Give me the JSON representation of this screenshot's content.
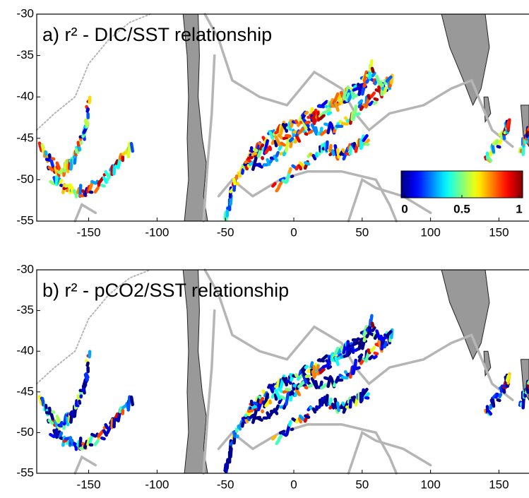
{
  "panels": [
    {
      "title": "a) r² - DIC/SST relationship",
      "xlim": [
        -188,
        172
      ],
      "ylim": [
        -55,
        -30
      ],
      "xticks": [
        -150,
        -100,
        -50,
        0,
        50,
        100,
        150
      ],
      "yticks": [
        -30,
        -35,
        -40,
        -45,
        -50,
        -55
      ]
    },
    {
      "title": "b) r² - pCO2/SST relationship",
      "xlim": [
        -188,
        172
      ],
      "ylim": [
        -55,
        -30
      ],
      "xticks": [
        -150,
        -100,
        -50,
        0,
        50,
        100,
        150
      ],
      "yticks": [
        -30,
        -35,
        -40,
        -45,
        -50,
        -55
      ]
    }
  ],
  "colorbar": {
    "lim": [
      0,
      1
    ],
    "ticks": [
      {
        "value": 0,
        "label": "0"
      },
      {
        "value": 0.5,
        "label": "0.5"
      },
      {
        "value": 1,
        "label": "1"
      }
    ]
  }
}
